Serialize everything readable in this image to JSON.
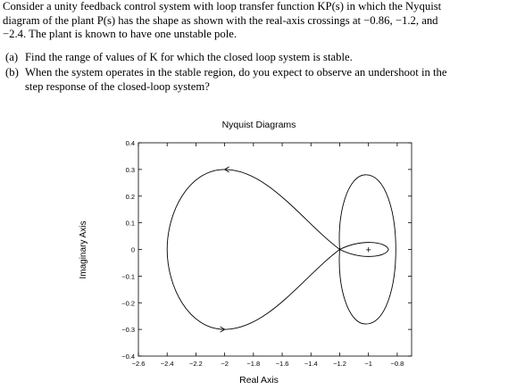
{
  "problem": {
    "intro_lines": [
      "Consider a unity feedback control system with loop transfer function KP(s) in which the Nyquist",
      "diagram of the plant P(s) has the shape as shown with the real-axis crossings at −0.86, −1.2, and",
      "−2.4. The plant is known to have one unstable pole."
    ],
    "parts": [
      {
        "label": "(a)",
        "lines": [
          "Find the range of values of K for which the closed loop system is stable."
        ]
      },
      {
        "label": "(b)",
        "lines": [
          "When the system operates in the stable region, do you expect to observe an undershoot in the",
          "step response of the closed-loop system?"
        ]
      }
    ]
  },
  "chart_data": {
    "type": "line",
    "title": "Nyquist Diagrams",
    "xlabel": "Real Axis",
    "ylabel": "Imaginary Axis",
    "xlim": [
      -2.6,
      -0.7
    ],
    "ylim": [
      -0.4,
      0.4
    ],
    "x_ticks": [
      -2.6,
      -2.4,
      -2.2,
      -2,
      -1.8,
      -1.6,
      -1.4,
      -1.2,
      -1,
      -0.8
    ],
    "x_tick_labels": [
      "−2.6",
      "−2.4",
      "−2.2",
      "−2",
      "−1.8",
      "−1.6",
      "−1.4",
      "−1.2",
      "−1",
      "−0.8"
    ],
    "y_ticks": [
      0.4,
      0.3,
      0.2,
      0.1,
      0,
      -0.1,
      -0.2,
      -0.3,
      -0.4
    ],
    "y_tick_labels": [
      "0.4",
      "0.3",
      "0.2",
      "0.1",
      "0",
      "−0.1",
      "−0.2",
      "−0.3",
      "−0.4"
    ],
    "real_axis_crossings": [
      -0.86,
      -1.2,
      -2.4
    ],
    "critical_point": {
      "x": -1,
      "y": 0,
      "marker": "+"
    },
    "series": [
      {
        "x": [
          -1.2,
          -1.32,
          -1.5,
          -1.7,
          -1.85,
          -2.0,
          -2.15,
          -2.3,
          -2.38,
          -2.4,
          -2.38,
          -2.3,
          -2.15,
          -2.0,
          -1.85,
          -1.7,
          -1.5,
          -1.32,
          -1.2,
          -1.1,
          -1.0,
          -0.93,
          -0.88,
          -0.86,
          -0.88,
          -0.93,
          -1.0,
          -1.07,
          -1.13,
          -1.17,
          -1.19,
          -1.2,
          -1.19,
          -1.17,
          -1.13,
          -1.07,
          -1.0,
          -0.93,
          -0.88,
          -0.86,
          -0.88,
          -0.93,
          -1.0,
          -1.1,
          -1.2
        ],
        "y": [
          0,
          0.04,
          0.1,
          0.18,
          0.25,
          0.3,
          0.29,
          0.24,
          0.14,
          0,
          -0.14,
          -0.24,
          -0.29,
          -0.3,
          -0.25,
          -0.18,
          -0.1,
          -0.04,
          0,
          0.025,
          0.025,
          0.015,
          0.008,
          0,
          -0.008,
          -0.015,
          -0.025,
          -0.028,
          -0.025,
          -0.015,
          -0.008,
          0,
          0.11,
          0.2,
          0.26,
          0.28,
          0.27,
          0.24,
          0.19,
          0.12,
          0.04,
          -0.04,
          -0.2,
          -0.22,
          0
        ]
      }
    ],
    "arrows": [
      {
        "x": -2.0,
        "y": 0.3,
        "direction": "left"
      },
      {
        "x": -2.0,
        "y": -0.3,
        "direction": "right"
      }
    ],
    "grid": false
  }
}
